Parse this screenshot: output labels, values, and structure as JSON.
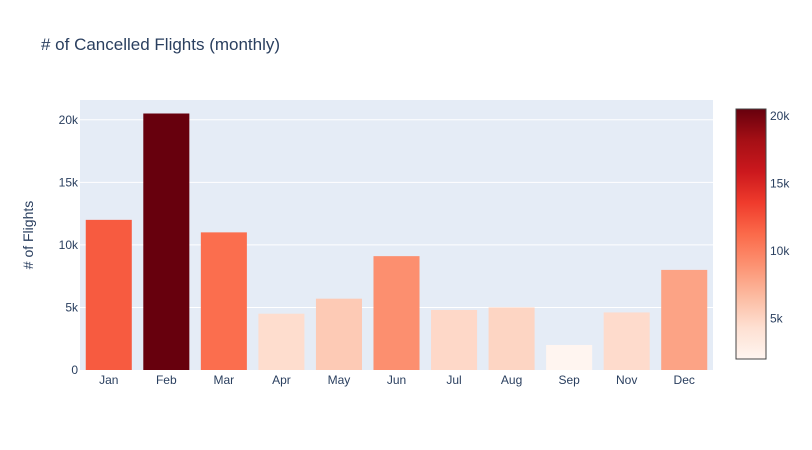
{
  "chart_data": {
    "type": "bar",
    "title": "# of Cancelled Flights (monthly)",
    "xlabel": "",
    "ylabel": "# of Flights",
    "categories": [
      "Jan",
      "Feb",
      "Mar",
      "Apr",
      "May",
      "Jun",
      "Jul",
      "Aug",
      "Sep",
      "Nov",
      "Dec"
    ],
    "values": [
      12000,
      20500,
      11000,
      4500,
      5700,
      9100,
      4800,
      5000,
      2000,
      4600,
      8000
    ],
    "ylim": [
      0,
      21579
    ],
    "yticks": [
      0,
      5000,
      10000,
      15000,
      20000
    ],
    "ytick_labels": [
      "0",
      "5k",
      "10k",
      "15k",
      "20k"
    ],
    "grid": true,
    "colorscale": {
      "name": "Reds",
      "range": [
        2000,
        20500
      ],
      "ticks": [
        5000,
        10000,
        15000,
        20000
      ],
      "tick_labels": [
        "5k",
        "10k",
        "15k",
        "20k"
      ],
      "stops": [
        "#fff5f0",
        "#fee0d2",
        "#fcbba1",
        "#fc9272",
        "#fb6a4a",
        "#ef3b2c",
        "#cb181d",
        "#a50f15",
        "#67000d"
      ]
    },
    "colors": {
      "plot_bg": "#e5ecf6",
      "grid": "#ffffff",
      "text": "#2a3f5f"
    }
  }
}
